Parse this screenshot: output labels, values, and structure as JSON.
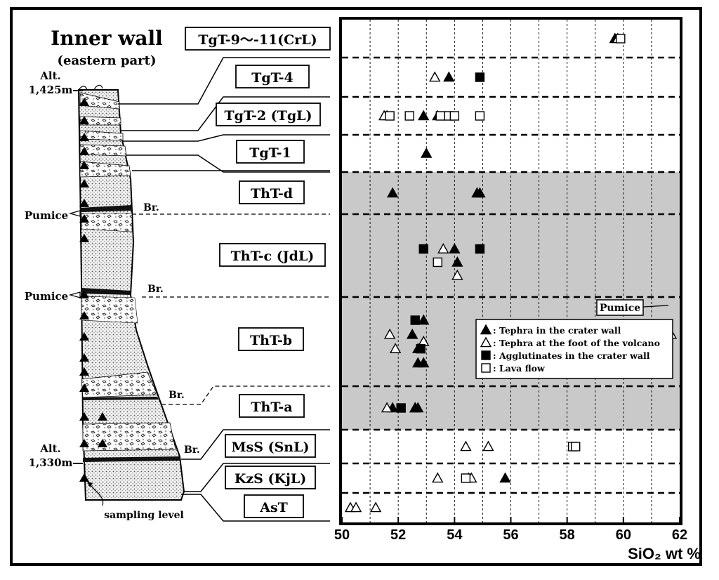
{
  "section": {
    "title": "Inner wall",
    "subtitle": "(eastern part)",
    "alt_top_label": "Alt.",
    "alt_top_value": "1,425m",
    "alt_bottom_label": "Alt.",
    "alt_bottom_value": "1,330m",
    "pumice_labels": [
      "Pumice",
      "Pumice"
    ],
    "break_label": "Br.",
    "sampling_level_label": "sampling level"
  },
  "units": [
    "TgT-9〜-11(CrL)",
    "TgT-4",
    "TgT-2 (TgL)",
    "TgT-1",
    "ThT-d",
    "ThT-c (JdL)",
    "ThT-b",
    "ThT-a",
    "MsS (SnL)",
    "KzS (KjL)",
    "AsT"
  ],
  "colors": {
    "shaded": "#c9c9c9",
    "ink": "#000000",
    "paper": "#ffffff"
  },
  "chart_data": {
    "type": "scatter",
    "xlabel": "SiO₂ wt %",
    "xlim": [
      50,
      62
    ],
    "xticks": [
      "50",
      "52",
      "54",
      "56",
      "58",
      "60",
      "62"
    ],
    "categories": [
      "TgT-9〜-11(CrL)",
      "TgT-4",
      "TgT-2 (TgL)",
      "TgT-1",
      "ThT-d",
      "ThT-c (JdL)",
      "ThT-b",
      "ThT-a",
      "MsS (SnL)",
      "KzS (KjL)",
      "AsT"
    ],
    "shaded_units": [
      "ThT-d",
      "ThT-c (JdL)",
      "ThT-b",
      "ThT-a"
    ],
    "legend": [
      {
        "marker": "filled-triangle",
        "label": "▲: Tephra in the crater wall"
      },
      {
        "marker": "open-triangle",
        "label": "△: Tephra at the foot of the volcano"
      },
      {
        "marker": "filled-square",
        "label": "■: Agglutinates in the crater wall"
      },
      {
        "marker": "open-square",
        "label": "□: Lava flow"
      }
    ],
    "annotation": "Pumice",
    "series": [
      {
        "name": "Tephra in the crater wall",
        "marker": "filled-triangle",
        "points": [
          {
            "unit": "TgT-9〜-11(CrL)",
            "x": 59.7
          },
          {
            "unit": "TgT-4",
            "x": 53.8
          },
          {
            "unit": "TgT-2 (TgL)",
            "x": 51.6
          },
          {
            "unit": "TgT-2 (TgL)",
            "x": 52.9
          },
          {
            "unit": "TgT-2 (TgL)",
            "x": 53.4
          },
          {
            "unit": "TgT-1",
            "x": 53.0
          },
          {
            "unit": "ThT-d",
            "x": 51.8
          },
          {
            "unit": "ThT-d",
            "x": 54.8
          },
          {
            "unit": "ThT-d",
            "x": 54.9
          },
          {
            "unit": "ThT-c (JdL)",
            "x": 54.0
          },
          {
            "unit": "ThT-c (JdL)",
            "x": 54.1
          },
          {
            "unit": "ThT-b",
            "x": 52.5
          },
          {
            "unit": "ThT-b",
            "x": 52.7
          },
          {
            "unit": "ThT-b",
            "x": 52.7
          },
          {
            "unit": "ThT-b",
            "x": 52.9
          },
          {
            "unit": "ThT-b",
            "x": 52.9
          },
          {
            "unit": "ThT-a",
            "x": 51.8
          },
          {
            "unit": "ThT-a",
            "x": 52.6
          },
          {
            "unit": "ThT-a",
            "x": 52.6
          },
          {
            "unit": "ThT-a",
            "x": 52.7
          },
          {
            "unit": "KzS (KjL)",
            "x": 55.8
          }
        ]
      },
      {
        "name": "Tephra at the foot of the volcano",
        "marker": "open-triangle",
        "points": [
          {
            "unit": "TgT-9〜-11(CrL)",
            "x": 59.8
          },
          {
            "unit": "TgT-4",
            "x": 53.3
          },
          {
            "unit": "TgT-2 (TgL)",
            "x": 51.5
          },
          {
            "unit": "ThT-c (JdL)",
            "x": 53.6
          },
          {
            "unit": "ThT-c (JdL)",
            "x": 54.1
          },
          {
            "unit": "ThT-b",
            "x": 61.7
          },
          {
            "unit": "ThT-b",
            "x": 51.7
          },
          {
            "unit": "ThT-b",
            "x": 51.9
          },
          {
            "unit": "ThT-b",
            "x": 52.9
          },
          {
            "unit": "ThT-a",
            "x": 51.6
          },
          {
            "unit": "MsS (SnL)",
            "x": 54.4
          },
          {
            "unit": "MsS (SnL)",
            "x": 55.2
          },
          {
            "unit": "KzS (KjL)",
            "x": 53.4
          },
          {
            "unit": "KzS (KjL)",
            "x": 54.5
          },
          {
            "unit": "KzS (KjL)",
            "x": 54.6
          },
          {
            "unit": "AsT",
            "x": 50.3
          },
          {
            "unit": "AsT",
            "x": 50.5
          },
          {
            "unit": "AsT",
            "x": 51.2
          }
        ]
      },
      {
        "name": "Agglutinates in the crater wall",
        "marker": "filled-square",
        "points": [
          {
            "unit": "TgT-4",
            "x": 54.9
          },
          {
            "unit": "ThT-c (JdL)",
            "x": 52.9
          },
          {
            "unit": "ThT-c (JdL)",
            "x": 54.9
          },
          {
            "unit": "ThT-b",
            "x": 52.6
          },
          {
            "unit": "ThT-b",
            "x": 52.8
          },
          {
            "unit": "ThT-a",
            "x": 52.1
          }
        ]
      },
      {
        "name": "Lava flow",
        "marker": "open-square",
        "points": [
          {
            "unit": "TgT-9〜-11(CrL)",
            "x": 59.9
          },
          {
            "unit": "TgT-2 (TgL)",
            "x": 51.7
          },
          {
            "unit": "TgT-2 (TgL)",
            "x": 52.4
          },
          {
            "unit": "TgT-2 (TgL)",
            "x": 53.5
          },
          {
            "unit": "TgT-2 (TgL)",
            "x": 53.8
          },
          {
            "unit": "TgT-2 (TgL)",
            "x": 54.0
          },
          {
            "unit": "TgT-2 (TgL)",
            "x": 54.9
          },
          {
            "unit": "ThT-c (JdL)",
            "x": 53.4
          },
          {
            "unit": "MsS (SnL)",
            "x": 58.2
          },
          {
            "unit": "MsS (SnL)",
            "x": 58.3
          },
          {
            "unit": "KzS (KjL)",
            "x": 54.4
          }
        ]
      }
    ]
  }
}
